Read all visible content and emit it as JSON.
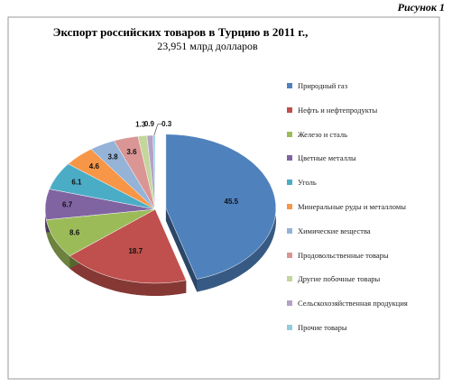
{
  "figure_label": "Рисунок 1",
  "chart_data": {
    "type": "pie",
    "title": "Экспорт российских товаров в Турцию в 2011 г.,",
    "subtitle": "23,951 млрд долларов",
    "categories": [
      "Природный газ",
      "Нефть и нефтепродукты",
      "Железо и сталь",
      "Цветные металлы",
      "Уголь",
      "Минеральные руды и металломы",
      "Химические вещества",
      "Продовольственные товары",
      "Другие побочные товары",
      "Сельскохозяйственная продукция",
      "Прочие товары"
    ],
    "values": [
      45.5,
      18.7,
      8.6,
      6.7,
      6.1,
      4.6,
      3.8,
      3.6,
      1.3,
      0.9,
      0.3
    ],
    "colors": [
      "#4f81bd",
      "#c0504d",
      "#9bbb59",
      "#8064a2",
      "#4bacc6",
      "#f79646",
      "#95b3d7",
      "#d99694",
      "#c3d69b",
      "#b3a2c7",
      "#93cddd"
    ],
    "legend": "right"
  }
}
